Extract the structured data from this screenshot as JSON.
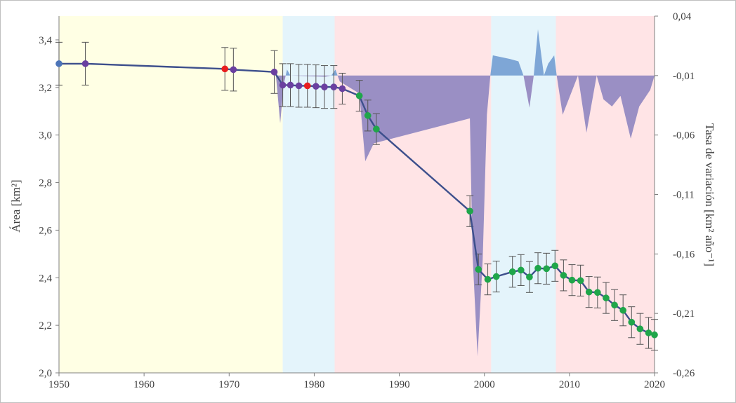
{
  "chart_data": {
    "type": "line",
    "xlim": [
      1950,
      2020
    ],
    "ylim": [
      2.0,
      3.5
    ],
    "y2lim": [
      -0.26,
      0.04
    ],
    "x_ticks": [
      "1950",
      "1960",
      "1970",
      "1980",
      "1990",
      "2000",
      "2010",
      "2020"
    ],
    "y_ticks": [
      "2,0",
      "2,2",
      "2,4",
      "2,6",
      "2,8",
      "3,0",
      "3,2",
      "3,4"
    ],
    "y2_ticks": [
      "-0,26",
      "-0,21",
      "-0,16",
      "-0,11",
      "-0,06",
      "-0,01",
      "0,04"
    ],
    "ylabel": "Área [km²]",
    "y2label": "Tasa de variación [km² año⁻¹]",
    "grid": false,
    "period_bands": [
      {
        "from": 1950,
        "to": 1976.3,
        "color": "#ffffe4"
      },
      {
        "from": 1976.3,
        "to": 1982.4,
        "color": "#e4f4fb"
      },
      {
        "from": 1982.4,
        "to": 2000.8,
        "color": "#ffe4e6"
      },
      {
        "from": 2000.8,
        "to": 2008.4,
        "color": "#e4f4fb"
      },
      {
        "from": 2008.4,
        "to": 2020,
        "color": "#ffe4e6"
      }
    ],
    "area_series": {
      "baseline": -0.01,
      "positive_color": "#7ea6d6",
      "negative_color": "#9a8fc4",
      "points": [
        [
          1975.5,
          -0.01
        ],
        [
          1976.0,
          -0.05
        ],
        [
          1976.4,
          -0.018
        ],
        [
          1976.8,
          -0.005
        ],
        [
          1977.2,
          -0.01
        ],
        [
          1981.3,
          -0.011
        ],
        [
          1982.0,
          -0.01
        ],
        [
          1982.5,
          -0.005
        ],
        [
          1983.0,
          -0.015
        ],
        [
          1985.3,
          -0.025
        ],
        [
          1986.0,
          -0.082
        ],
        [
          1987.0,
          -0.067
        ],
        [
          1998.3,
          -0.046
        ],
        [
          1998.6,
          -0.16
        ],
        [
          1999.2,
          -0.246
        ],
        [
          1999.8,
          -0.165
        ],
        [
          2000.3,
          -0.043
        ],
        [
          2000.7,
          -0.01
        ],
        [
          2001.0,
          0.007
        ],
        [
          2003.0,
          0.004
        ],
        [
          2004.0,
          0.002
        ],
        [
          2004.6,
          -0.01
        ],
        [
          2005.3,
          -0.037
        ],
        [
          2005.8,
          -0.01
        ],
        [
          2006.3,
          0.029
        ],
        [
          2007.0,
          -0.01
        ],
        [
          2007.5,
          0.0
        ],
        [
          2008.2,
          0.007
        ],
        [
          2008.5,
          -0.01
        ],
        [
          2009.2,
          -0.043
        ],
        [
          2011.0,
          -0.01
        ],
        [
          2012.0,
          -0.058
        ],
        [
          2013.2,
          -0.01
        ],
        [
          2014.0,
          -0.03
        ],
        [
          2015.0,
          -0.036
        ],
        [
          2016.0,
          -0.027
        ],
        [
          2017.2,
          -0.063
        ],
        [
          2018.2,
          -0.036
        ],
        [
          2019.5,
          -0.022
        ],
        [
          2020.0,
          -0.01
        ]
      ]
    },
    "series": [
      {
        "color": "#3d4f8c",
        "points": [
          {
            "x": 1950.0,
            "y": 3.3,
            "err": 0.09,
            "c": "#4c74b8"
          },
          {
            "x": 1953.1,
            "y": 3.3,
            "err": 0.09,
            "c": "#6a3fa0"
          },
          {
            "x": 1969.5,
            "y": 3.278,
            "err": 0.09,
            "c": "#e81e1e"
          },
          {
            "x": 1970.5,
            "y": 3.275,
            "err": 0.09,
            "c": "#6a3fa0"
          },
          {
            "x": 1975.3,
            "y": 3.265,
            "err": 0.09,
            "c": "#6a3fa0"
          },
          {
            "x": 1976.3,
            "y": 3.21,
            "err": 0.09,
            "c": "#6a3fa0"
          },
          {
            "x": 1977.2,
            "y": 3.21,
            "err": 0.09,
            "c": "#6a3fa0"
          },
          {
            "x": 1978.2,
            "y": 3.207,
            "err": 0.09,
            "c": "#6a3fa0"
          },
          {
            "x": 1979.2,
            "y": 3.207,
            "err": 0.09,
            "c": "#e81e1e"
          },
          {
            "x": 1980.2,
            "y": 3.205,
            "err": 0.09,
            "c": "#6a3fa0"
          },
          {
            "x": 1981.2,
            "y": 3.202,
            "err": 0.09,
            "c": "#6a3fa0"
          },
          {
            "x": 1982.3,
            "y": 3.202,
            "err": 0.09,
            "c": "#6a3fa0"
          },
          {
            "x": 1983.3,
            "y": 3.195,
            "err": 0.065,
            "c": "#6a3fa0"
          },
          {
            "x": 1985.3,
            "y": 3.165,
            "err": 0.065,
            "c": "#1fa64a"
          },
          {
            "x": 1986.3,
            "y": 3.082,
            "err": 0.065,
            "c": "#1fa64a"
          },
          {
            "x": 1987.3,
            "y": 3.025,
            "err": 0.065,
            "c": "#1fa64a"
          },
          {
            "x": 1998.3,
            "y": 2.68,
            "err": 0.065,
            "c": "#1fa64a"
          },
          {
            "x": 1999.3,
            "y": 2.435,
            "err": 0.065,
            "c": "#1fa64a"
          },
          {
            "x": 2000.4,
            "y": 2.393,
            "err": 0.065,
            "c": "#1fa64a"
          },
          {
            "x": 2001.4,
            "y": 2.405,
            "err": 0.065,
            "c": "#1fa64a"
          },
          {
            "x": 2003.3,
            "y": 2.425,
            "err": 0.065,
            "c": "#1fa64a"
          },
          {
            "x": 2004.3,
            "y": 2.432,
            "err": 0.065,
            "c": "#1fa64a"
          },
          {
            "x": 2005.3,
            "y": 2.403,
            "err": 0.065,
            "c": "#1fa64a"
          },
          {
            "x": 2006.3,
            "y": 2.44,
            "err": 0.065,
            "c": "#1fa64a"
          },
          {
            "x": 2007.3,
            "y": 2.438,
            "err": 0.065,
            "c": "#1fa64a"
          },
          {
            "x": 2008.3,
            "y": 2.45,
            "err": 0.065,
            "c": "#1fa64a"
          },
          {
            "x": 2009.3,
            "y": 2.41,
            "err": 0.065,
            "c": "#1fa64a"
          },
          {
            "x": 2010.3,
            "y": 2.39,
            "err": 0.065,
            "c": "#1fa64a"
          },
          {
            "x": 2011.3,
            "y": 2.388,
            "err": 0.065,
            "c": "#1fa64a"
          },
          {
            "x": 2012.3,
            "y": 2.34,
            "err": 0.065,
            "c": "#1fa64a"
          },
          {
            "x": 2013.3,
            "y": 2.338,
            "err": 0.065,
            "c": "#1fa64a"
          },
          {
            "x": 2014.3,
            "y": 2.315,
            "err": 0.065,
            "c": "#1fa64a"
          },
          {
            "x": 2015.3,
            "y": 2.285,
            "err": 0.065,
            "c": "#1fa64a"
          },
          {
            "x": 2016.3,
            "y": 2.263,
            "err": 0.065,
            "c": "#1fa64a"
          },
          {
            "x": 2017.3,
            "y": 2.213,
            "err": 0.065,
            "c": "#1fa64a"
          },
          {
            "x": 2018.3,
            "y": 2.185,
            "err": 0.065,
            "c": "#1fa64a"
          },
          {
            "x": 2019.3,
            "y": 2.168,
            "err": 0.065,
            "c": "#1fa64a"
          },
          {
            "x": 2020.0,
            "y": 2.16,
            "err": 0.065,
            "c": "#1fa64a"
          }
        ]
      }
    ]
  }
}
